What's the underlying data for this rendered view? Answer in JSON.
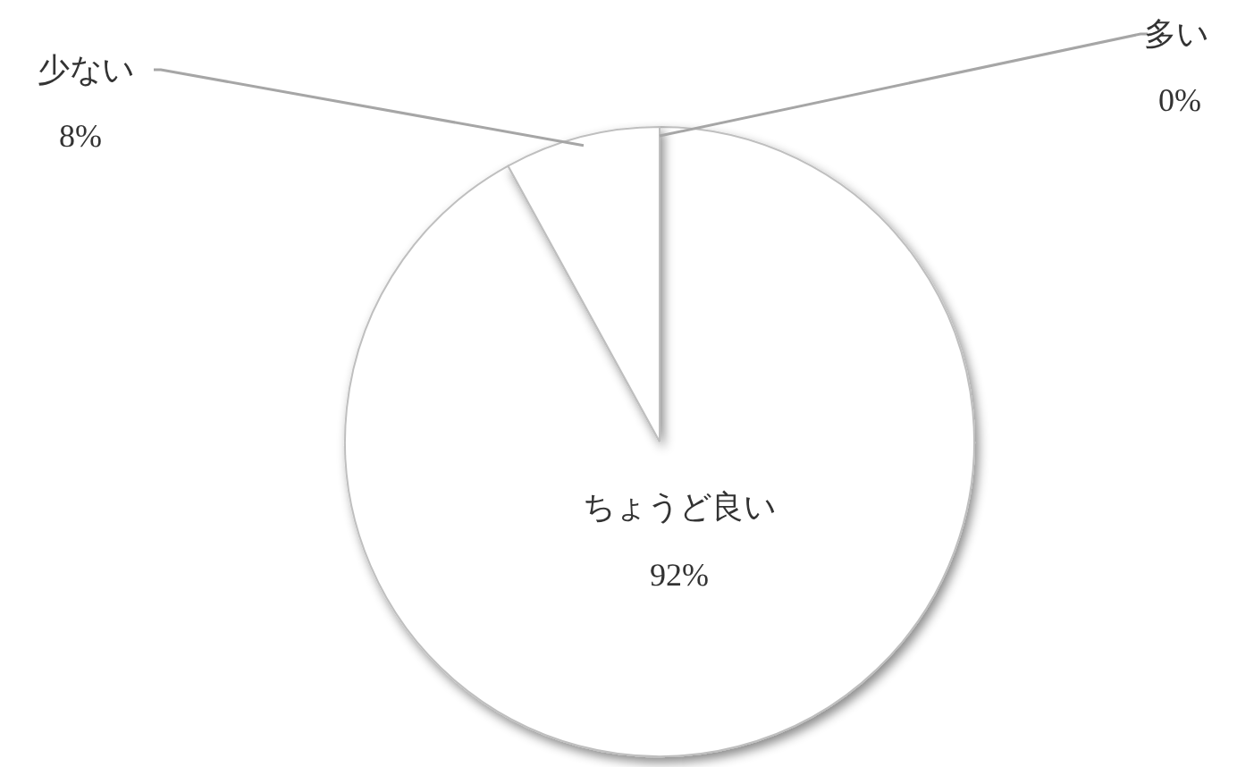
{
  "chart_data": {
    "type": "pie",
    "categories": [
      "多い",
      "ちょうど良い",
      "少ない"
    ],
    "values": [
      0,
      92,
      8
    ],
    "value_labels": [
      "0%",
      "92%",
      "8%"
    ],
    "colors": [
      "#ffffff",
      "#ffffff",
      "#ffffff"
    ]
  }
}
